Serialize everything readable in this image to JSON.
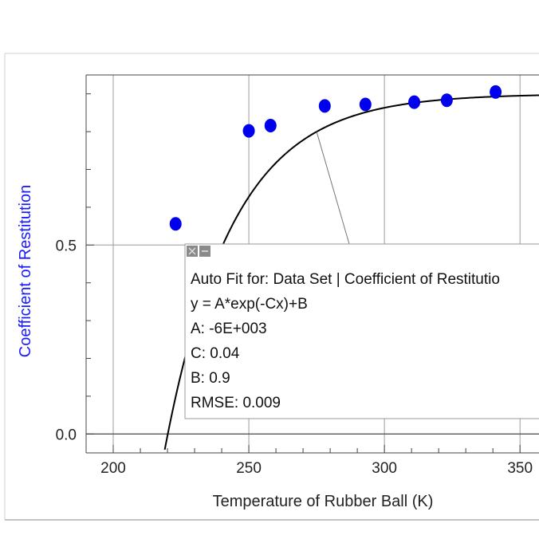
{
  "chart_data": {
    "type": "scatter",
    "xlabel": "Temperature of Rubber Ball (K)",
    "ylabel": "Coefficient of Restitution",
    "xlim": [
      190,
      357
    ],
    "ylim": [
      -0.05,
      0.95
    ],
    "x_ticks": [
      200,
      250,
      300,
      350
    ],
    "x_tick_labels": [
      "200",
      "250",
      "300",
      "350"
    ],
    "y_ticks": [
      0.0,
      0.5
    ],
    "y_tick_labels": [
      "0.0",
      "0.5"
    ],
    "grid": true,
    "point_color": "#0000ee",
    "curve_color": "#000000",
    "points": [
      {
        "x": 223,
        "y": 0.556
      },
      {
        "x": 250,
        "y": 0.802
      },
      {
        "x": 258,
        "y": 0.816
      },
      {
        "x": 278,
        "y": 0.868
      },
      {
        "x": 293,
        "y": 0.872
      },
      {
        "x": 311,
        "y": 0.878
      },
      {
        "x": 323,
        "y": 0.883
      },
      {
        "x": 341,
        "y": 0.905
      }
    ],
    "fit": {
      "model": "A*exp(-Cx)+B",
      "A": -6000,
      "C": 0.04,
      "B": 0.9,
      "box_text": [
        "Auto Fit for: Data Set | Coefficient of Restitutio",
        "y = A*exp(-Cx)+B",
        "A: -6E+003",
        "C: 0.04",
        "B: 0.9",
        "RMSE: 0.009"
      ]
    }
  }
}
